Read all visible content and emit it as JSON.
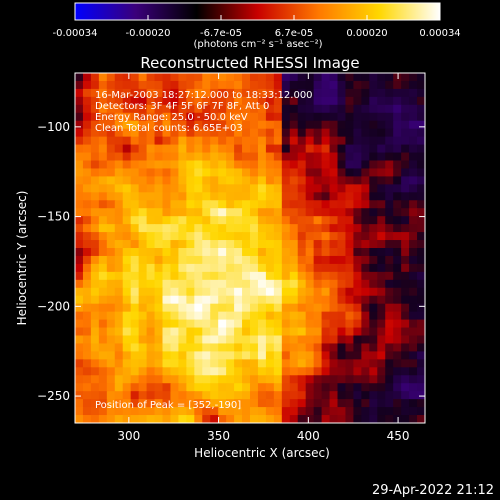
{
  "chart_data": {
    "type": "heatmap",
    "title": "Reconstructed RHESSI Image",
    "xlabel": "Heliocentric X (arcsec)",
    "ylabel": "Heliocentric Y (arcsec)",
    "xlim": [
      270,
      465
    ],
    "ylim": [
      -265,
      -70
    ],
    "x_ticks": [
      "300",
      "350",
      "400",
      "450"
    ],
    "y_ticks": [
      "-100",
      "-150",
      "-200",
      "-250"
    ],
    "colorbar": {
      "min": -0.00034,
      "max": 0.00034,
      "tick_labels": [
        "-0.00034",
        "-0.00020",
        "-6.7e-05",
        "6.7e-05",
        "0.00020",
        "0.00034"
      ],
      "units_label": "(photons cm⁻² s⁻¹ asec⁻²)",
      "colors": [
        "#0000ff",
        "#3a007a",
        "#000000",
        "#c80000",
        "#ff7800",
        "#ffd700",
        "#ffffff"
      ]
    },
    "annotations": [
      "16-Mar-2003 18:27:12.000 to 18:33:12.000",
      "Detectors: 3F 4F 5F 6F 7F 8F, Att 0",
      "Energy Range: 25.0 - 50.0 keV",
      "Clean     Total counts: 6.65E+03"
    ],
    "peak_label": "Position of Peak = [352,-190]",
    "peak": [
      352,
      -190
    ]
  },
  "timestamp": "29-Apr-2022 21:12"
}
